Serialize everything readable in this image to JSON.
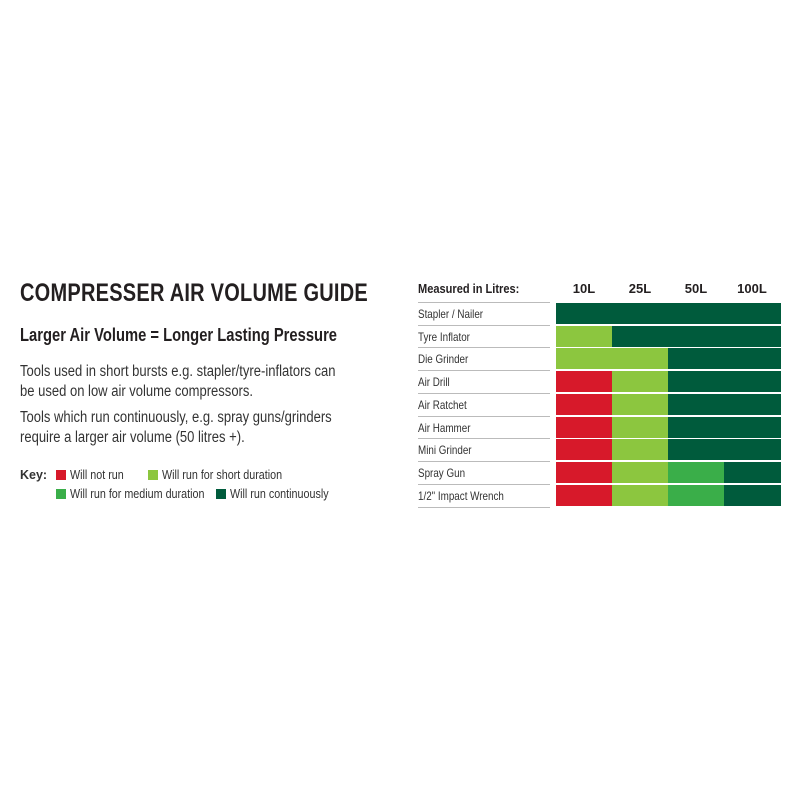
{
  "title": "COMPRESSER AIR VOLUME GUIDE",
  "subtitle": "Larger Air Volume = Longer Lasting Pressure",
  "paragraphs": [
    [
      "Tools used in short bursts e.g. stapler/tyre-inflators can",
      "be used on low air volume compressors."
    ],
    [
      "Tools which run continuously, e.g. spray guns/grinders",
      "require a larger air volume (50 litres +)."
    ]
  ],
  "key": {
    "label": "Key:",
    "items": [
      {
        "label": "Will not run",
        "color": "#d7192a"
      },
      {
        "label": "Will run for short duration",
        "color": "#8cc63f"
      },
      {
        "label": "Will run for medium duration",
        "color": "#3aae49"
      },
      {
        "label": "Will run continuously",
        "color": "#005b3c"
      }
    ]
  },
  "chart_data": {
    "type": "heatmap",
    "row_header": "Measured in Litres:",
    "columns": [
      "10L",
      "25L",
      "50L",
      "100L"
    ],
    "rows": [
      "Stapler / Nailer",
      "Tyre Inflator",
      "Die Grinder",
      "Air Drill",
      "Air Ratchet",
      "Air Hammer",
      "Mini Grinder",
      "Spray Gun",
      "1/2\" Impact Wrench"
    ],
    "levels": [
      "Will not run",
      "Will run for short duration",
      "Will run for medium duration",
      "Will run continuously"
    ],
    "values": [
      [
        3,
        3,
        3,
        3
      ],
      [
        1,
        3,
        3,
        3
      ],
      [
        1,
        1,
        3,
        3
      ],
      [
        0,
        1,
        3,
        3
      ],
      [
        0,
        1,
        3,
        3
      ],
      [
        0,
        1,
        3,
        3
      ],
      [
        0,
        1,
        3,
        3
      ],
      [
        0,
        1,
        2,
        3
      ],
      [
        0,
        1,
        2,
        3
      ]
    ]
  }
}
